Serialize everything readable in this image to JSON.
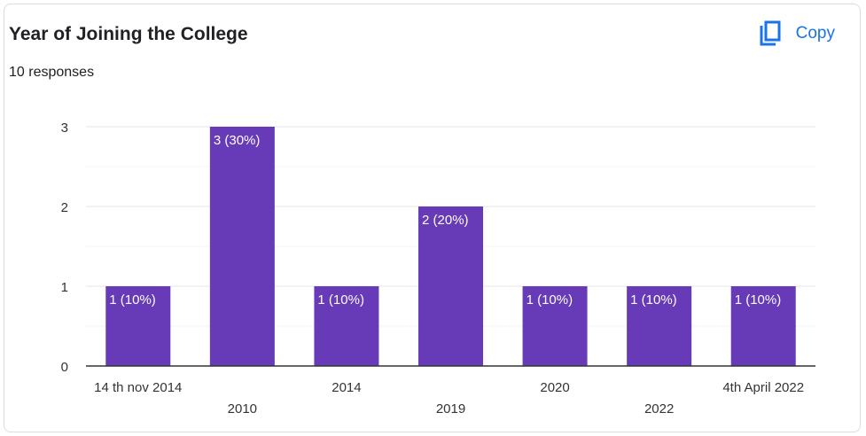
{
  "header": {
    "title": "Year of Joining the College",
    "responses": "10 responses",
    "copy_label": "Copy"
  },
  "colors": {
    "bar": "#673ab7",
    "accent": "#1a73e8",
    "grid": "#e8e8e8"
  },
  "icons": {
    "copy": "copy-icon"
  },
  "chart_data": {
    "type": "bar",
    "title": "Year of Joining the College",
    "categories": [
      "14 th nov 2014",
      "2010",
      "2014",
      "2019",
      "2020",
      "2022",
      "4th April 2022"
    ],
    "values": [
      1,
      3,
      1,
      2,
      1,
      1,
      1
    ],
    "data_labels": [
      "1 (10%)",
      "3 (30%)",
      "1 (10%)",
      "2 (20%)",
      "1 (10%)",
      "1 (10%)",
      "1 (10%)"
    ],
    "y_ticks": [
      "0",
      "1",
      "2",
      "3"
    ],
    "ylim": [
      0,
      3
    ],
    "xlabel": "",
    "ylabel": "",
    "grid": true,
    "legend": "none"
  }
}
